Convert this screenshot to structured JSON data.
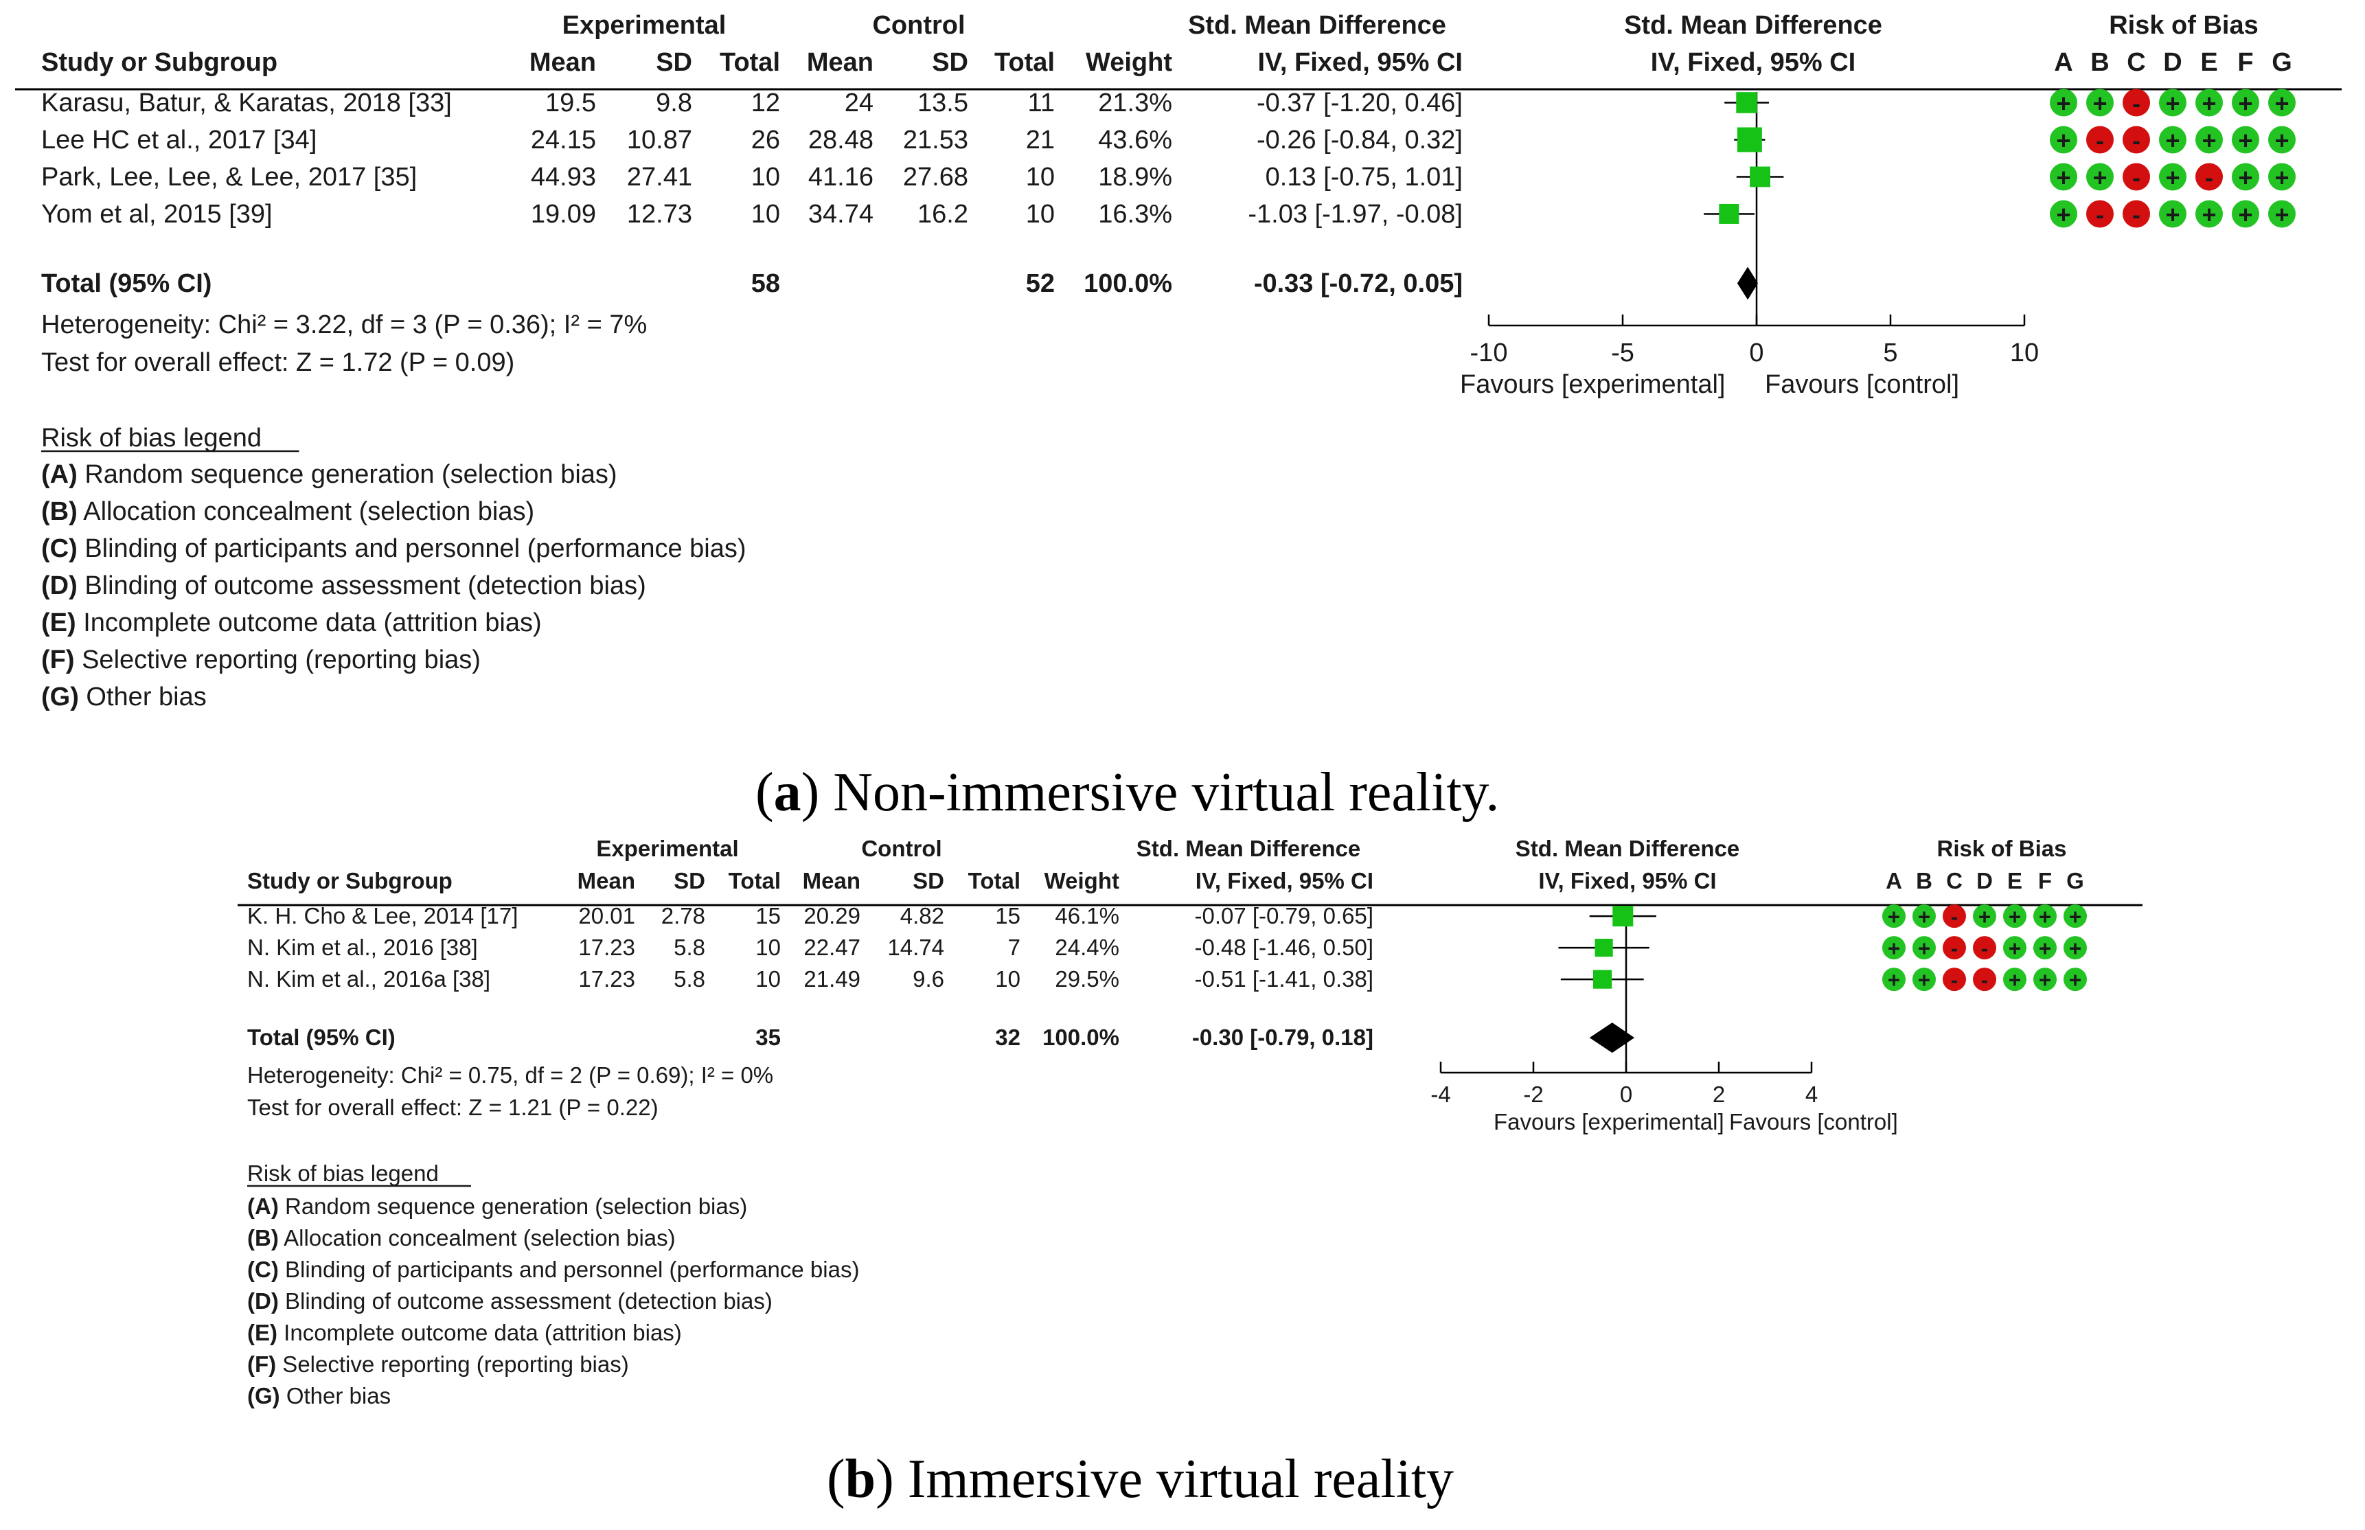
{
  "chart_data": [
    {
      "type": "forest",
      "caption_letter": "a",
      "caption_text": ") Non-immersive virtual reality.",
      "caption_open": "(",
      "headers": {
        "experimental": "Experimental",
        "control": "Control",
        "smd_table": "Std. Mean Difference",
        "smd_method": "IV, Fixed, 95% CI",
        "smd_plot": "Std. Mean Difference",
        "smd_plot_method": "IV, Fixed, 95% CI",
        "risk_of_bias": "Risk of Bias",
        "study": "Study or Subgroup",
        "mean": "Mean",
        "sd": "SD",
        "total": "Total",
        "weight": "Weight"
      },
      "bias_letters": [
        "A",
        "B",
        "C",
        "D",
        "E",
        "F",
        "G"
      ],
      "studies": [
        {
          "name": "Karasu, Batur, & Karatas, 2018 [33]",
          "e_mean": "19.5",
          "e_sd": "9.8",
          "e_total": "12",
          "c_mean": "24",
          "c_sd": "13.5",
          "c_total": "11",
          "weight": "21.3%",
          "ci_text": "-0.37 [-1.20, 0.46]",
          "est": -0.37,
          "lo": -1.2,
          "hi": 0.46,
          "w": 21.3,
          "bias": [
            "+",
            "+",
            "-",
            "+",
            "+",
            "+",
            "+"
          ]
        },
        {
          "name": "Lee HC et al., 2017 [34]",
          "e_mean": "24.15",
          "e_sd": "10.87",
          "e_total": "26",
          "c_mean": "28.48",
          "c_sd": "21.53",
          "c_total": "21",
          "weight": "43.6%",
          "ci_text": "-0.26 [-0.84, 0.32]",
          "est": -0.26,
          "lo": -0.84,
          "hi": 0.32,
          "w": 43.6,
          "bias": [
            "+",
            "-",
            "-",
            "+",
            "+",
            "+",
            "+"
          ]
        },
        {
          "name": "Park, Lee, Lee, & Lee, 2017 [35]",
          "e_mean": "44.93",
          "e_sd": "27.41",
          "e_total": "10",
          "c_mean": "41.16",
          "c_sd": "27.68",
          "c_total": "10",
          "weight": "18.9%",
          "ci_text": "0.13 [-0.75, 1.01]",
          "est": 0.13,
          "lo": -0.75,
          "hi": 1.01,
          "w": 18.9,
          "bias": [
            "+",
            "+",
            "-",
            "+",
            "-",
            "+",
            "+"
          ]
        },
        {
          "name": "Yom et al, 2015 [39]",
          "e_mean": "19.09",
          "e_sd": "12.73",
          "e_total": "10",
          "c_mean": "34.74",
          "c_sd": "16.2",
          "c_total": "10",
          "weight": "16.3%",
          "ci_text": "-1.03 [-1.97, -0.08]",
          "est": -1.03,
          "lo": -1.97,
          "hi": -0.08,
          "w": 16.3,
          "bias": [
            "+",
            "-",
            "-",
            "+",
            "+",
            "+",
            "+"
          ]
        }
      ],
      "total": {
        "label": "Total (95% CI)",
        "e_total": "58",
        "c_total": "52",
        "weight": "100.0%",
        "ci_text": "-0.33 [-0.72, 0.05]",
        "est": -0.33,
        "lo": -0.72,
        "hi": 0.05
      },
      "heterogeneity": "Heterogeneity: Chi² = 3.22, df = 3 (P = 0.36); I² = 7%",
      "overall_effect": "Test for overall effect: Z = 1.72 (P = 0.09)",
      "axis": {
        "min": -10,
        "max": 10,
        "ticks": [
          -10,
          -5,
          0,
          5,
          10
        ],
        "tick_labels": [
          "-10",
          "-5",
          "0",
          "5",
          "10"
        ],
        "left_label": "Favours [experimental]",
        "right_label": "Favours [control]"
      },
      "legend_title": "Risk of bias legend",
      "legend": [
        {
          "key": "(A)",
          "text": " Random sequence generation (selection bias)"
        },
        {
          "key": "(B)",
          "text": " Allocation concealment (selection bias)"
        },
        {
          "key": "(C)",
          "text": " Blinding of participants and personnel (performance bias)"
        },
        {
          "key": "(D)",
          "text": " Blinding of outcome assessment (detection bias)"
        },
        {
          "key": "(E)",
          "text": " Incomplete outcome data (attrition bias)"
        },
        {
          "key": "(F)",
          "text": " Selective reporting (reporting bias)"
        },
        {
          "key": "(G)",
          "text": " Other bias"
        }
      ]
    },
    {
      "type": "forest",
      "caption_letter": "b",
      "caption_text": ") Immersive virtual reality",
      "caption_open": "(",
      "headers": {
        "experimental": "Experimental",
        "control": "Control",
        "smd_table": "Std. Mean Difference",
        "smd_method": "IV, Fixed, 95% CI",
        "smd_plot": "Std. Mean Difference",
        "smd_plot_method": "IV, Fixed, 95% CI",
        "risk_of_bias": "Risk of Bias",
        "study": "Study or Subgroup",
        "mean": "Mean",
        "sd": "SD",
        "total": "Total",
        "weight": "Weight"
      },
      "bias_letters": [
        "A",
        "B",
        "C",
        "D",
        "E",
        "F",
        "G"
      ],
      "studies": [
        {
          "name": "K. H. Cho & Lee, 2014 [17]",
          "e_mean": "20.01",
          "e_sd": "2.78",
          "e_total": "15",
          "c_mean": "20.29",
          "c_sd": "4.82",
          "c_total": "15",
          "weight": "46.1%",
          "ci_text": "-0.07 [-0.79, 0.65]",
          "est": -0.07,
          "lo": -0.79,
          "hi": 0.65,
          "w": 46.1,
          "bias": [
            "+",
            "+",
            "-",
            "+",
            "+",
            "+",
            "+"
          ]
        },
        {
          "name": "N. Kim et al., 2016 [38]",
          "e_mean": "17.23",
          "e_sd": "5.8",
          "e_total": "10",
          "c_mean": "22.47",
          "c_sd": "14.74",
          "c_total": "7",
          "weight": "24.4%",
          "ci_text": "-0.48 [-1.46, 0.50]",
          "est": -0.48,
          "lo": -1.46,
          "hi": 0.5,
          "w": 24.4,
          "bias": [
            "+",
            "+",
            "-",
            "-",
            "+",
            "+",
            "+"
          ]
        },
        {
          "name": "N. Kim et al., 2016a [38]",
          "e_mean": "17.23",
          "e_sd": "5.8",
          "e_total": "10",
          "c_mean": "21.49",
          "c_sd": "9.6",
          "c_total": "10",
          "weight": "29.5%",
          "ci_text": "-0.51 [-1.41, 0.38]",
          "est": -0.51,
          "lo": -1.41,
          "hi": 0.38,
          "w": 29.5,
          "bias": [
            "+",
            "+",
            "-",
            "-",
            "+",
            "+",
            "+"
          ]
        }
      ],
      "total": {
        "label": "Total (95% CI)",
        "e_total": "35",
        "c_total": "32",
        "weight": "100.0%",
        "ci_text": "-0.30 [-0.79, 0.18]",
        "est": -0.3,
        "lo": -0.79,
        "hi": 0.18
      },
      "heterogeneity": "Heterogeneity: Chi² = 0.75, df = 2 (P = 0.69); I² = 0%",
      "overall_effect": "Test for overall effect: Z = 1.21 (P = 0.22)",
      "axis": {
        "min": -4,
        "max": 4,
        "ticks": [
          -4,
          -2,
          0,
          2,
          4
        ],
        "tick_labels": [
          "-4",
          "-2",
          "0",
          "2",
          "4"
        ],
        "left_label": "Favours [experimental]",
        "right_label": "Favours [control]"
      },
      "legend_title": "Risk of bias legend",
      "legend": [
        {
          "key": "(A)",
          "text": " Random sequence generation (selection bias)"
        },
        {
          "key": "(B)",
          "text": " Allocation concealment (selection bias)"
        },
        {
          "key": "(C)",
          "text": " Blinding of participants and personnel (performance bias)"
        },
        {
          "key": "(D)",
          "text": " Blinding of outcome assessment (detection bias)"
        },
        {
          "key": "(E)",
          "text": " Incomplete outcome data (attrition bias)"
        },
        {
          "key": "(F)",
          "text": " Selective reporting (reporting bias)"
        },
        {
          "key": "(G)",
          "text": " Other bias"
        }
      ]
    }
  ],
  "colors": {
    "low_risk": "#22c322",
    "high_risk": "#d40f0f",
    "marker": "#17c217",
    "diamond": "#000000",
    "text": "#1a1a1a"
  }
}
